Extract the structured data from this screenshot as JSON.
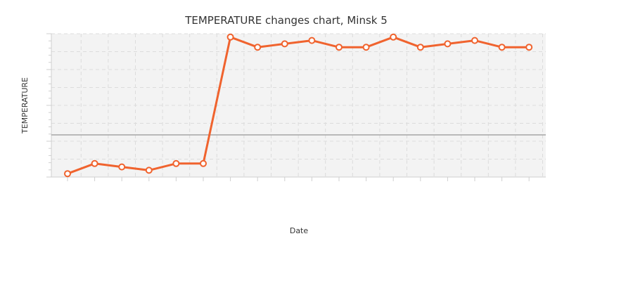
{
  "chart_data": {
    "type": "line",
    "title": "TEMPERATURE changes chart, Minsk 5",
    "xlabel": "Date",
    "ylabel": "TEMPERATURE",
    "x_count": 18,
    "series": [
      {
        "values": [
          -4.6,
          -3.4,
          -3.8,
          -4.2,
          -3.4,
          -3.4,
          11.6,
          10.4,
          10.8,
          11.2,
          10.4,
          10.4,
          11.6,
          10.4,
          10.8,
          11.2,
          10.4,
          10.4
        ],
        "color": "#f0632e"
      }
    ],
    "ylim": [
      -5,
      12
    ],
    "reference_line": 0,
    "reference_color": "#a6a6a6",
    "grid": true,
    "plot_background": "#f3f3f3",
    "marker": "hollow-circle",
    "tick_labels_visible": false
  }
}
